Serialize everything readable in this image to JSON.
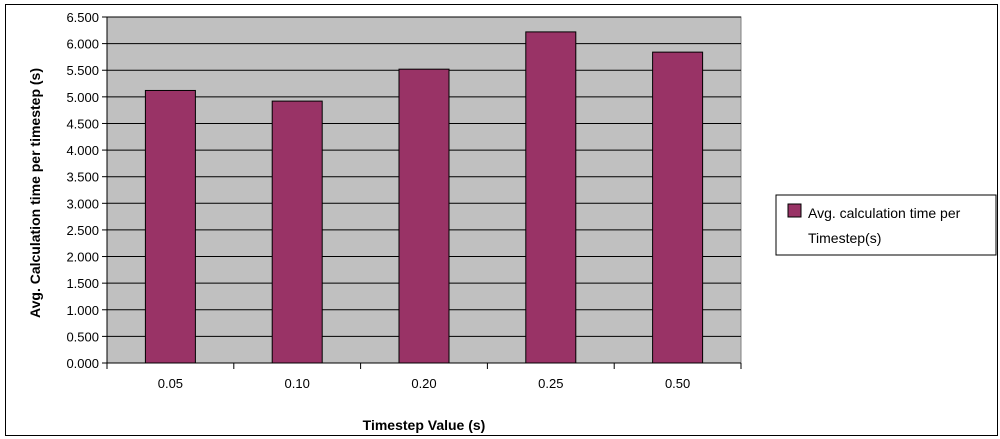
{
  "chart_data": {
    "type": "bar",
    "title": "",
    "xlabel": "Timestep Value (s)",
    "ylabel": "Avg. Calculation time per timestep (s)",
    "categories": [
      "0.05",
      "0.10",
      "0.20",
      "0.25",
      "0.50"
    ],
    "series": [
      {
        "name": "Avg. calculation time per Timestep(s)",
        "values": [
          5.12,
          4.92,
          5.52,
          6.22,
          5.84
        ],
        "color": "#993366"
      }
    ],
    "ylim": [
      0,
      6.5
    ],
    "ytick_step": 0.5,
    "ytick_labels": [
      "0.000",
      "0.500",
      "1.000",
      "1.500",
      "2.000",
      "2.500",
      "3.000",
      "3.500",
      "4.000",
      "4.500",
      "5.000",
      "5.500",
      "6.000",
      "6.500"
    ],
    "grid": true,
    "plot_background": "#c0c0c0",
    "legend": {
      "placement": "right",
      "lines": [
        "Avg. calculation time per",
        "Timestep(s)"
      ]
    }
  }
}
